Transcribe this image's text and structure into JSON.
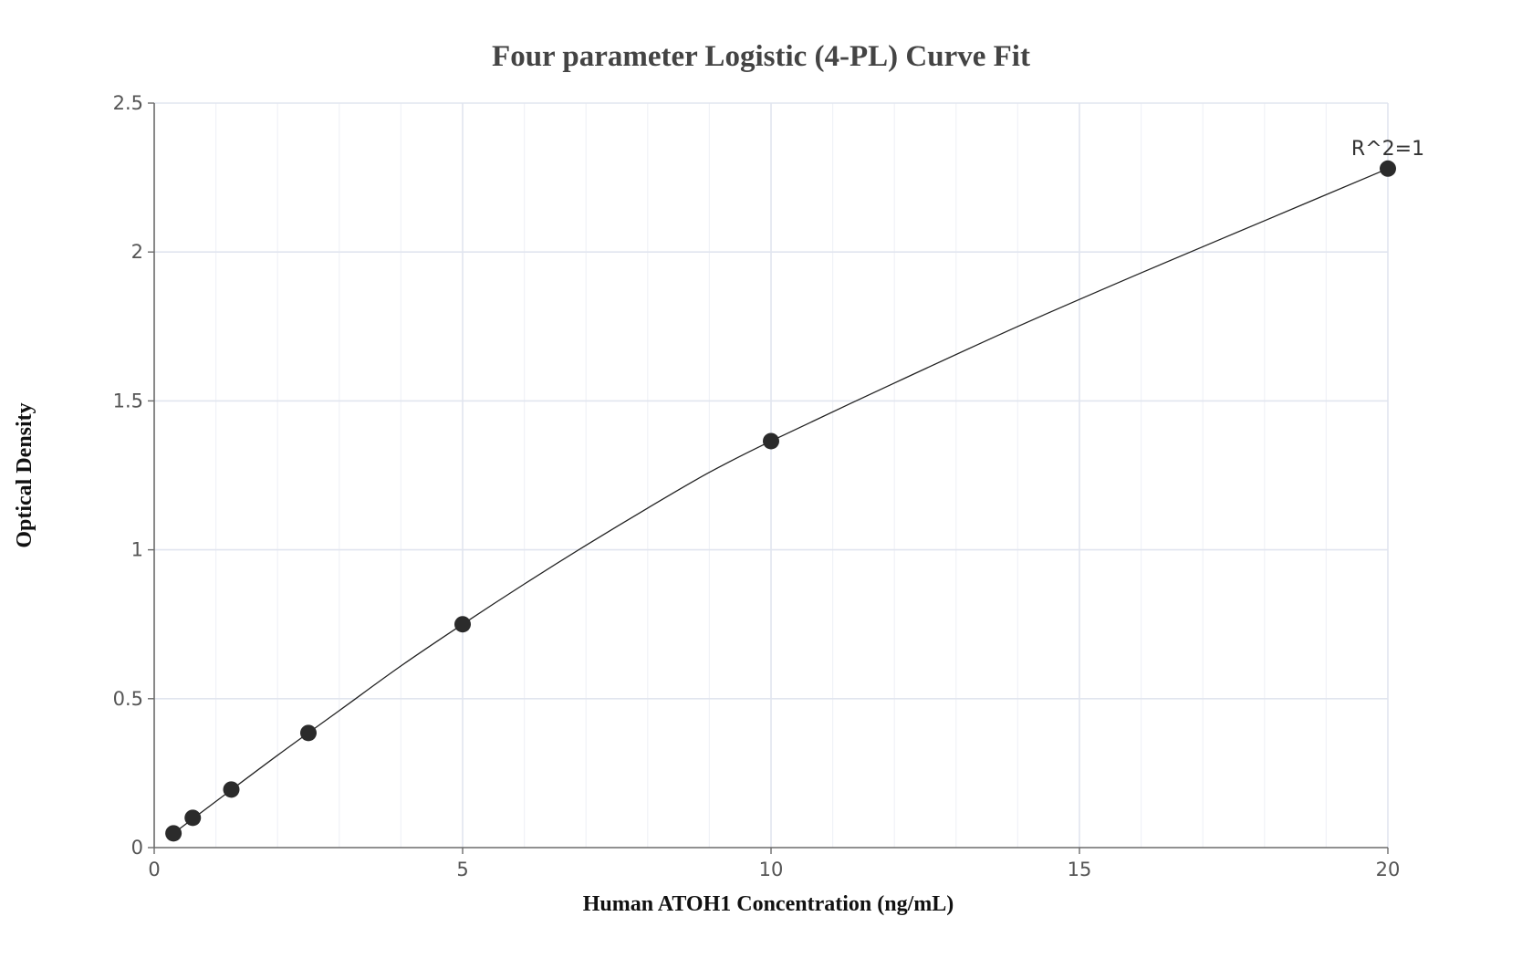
{
  "chart_data": {
    "type": "scatter",
    "title": "Four parameter Logistic (4-PL) Curve Fit",
    "xlabel": "Human ATOH1 Concentration (ng/mL)",
    "ylabel": "Optical Density",
    "xlim": [
      0,
      20
    ],
    "ylim": [
      0,
      2.5
    ],
    "x_ticks": [
      0,
      5,
      10,
      15,
      20
    ],
    "y_ticks": [
      0,
      0.5,
      1,
      1.5,
      2,
      2.5
    ],
    "x_tick_labels": [
      "0",
      "5",
      "10",
      "15",
      "20"
    ],
    "y_tick_labels": [
      "0",
      "0.5",
      "1",
      "1.5",
      "2",
      "2.5"
    ],
    "grid": true,
    "legend": "none",
    "series": [
      {
        "points": [
          {
            "x": 0.3125,
            "y": 0.048
          },
          {
            "x": 0.625,
            "y": 0.1
          },
          {
            "x": 1.25,
            "y": 0.195
          },
          {
            "x": 2.5,
            "y": 0.385
          },
          {
            "x": 5,
            "y": 0.75
          },
          {
            "x": 10,
            "y": 1.365
          },
          {
            "x": 20,
            "y": 2.28
          }
        ]
      }
    ],
    "fit_curve": {
      "model": "4PL",
      "points": [
        {
          "x": 0.3125,
          "y": 0.048
        },
        {
          "x": 1,
          "y": 0.155
        },
        {
          "x": 2,
          "y": 0.31
        },
        {
          "x": 3,
          "y": 0.46
        },
        {
          "x": 4,
          "y": 0.61
        },
        {
          "x": 5,
          "y": 0.75
        },
        {
          "x": 6,
          "y": 0.885
        },
        {
          "x": 7,
          "y": 1.015
        },
        {
          "x": 8,
          "y": 1.14
        },
        {
          "x": 9,
          "y": 1.26
        },
        {
          "x": 10,
          "y": 1.365
        },
        {
          "x": 12,
          "y": 1.56
        },
        {
          "x": 14,
          "y": 1.75
        },
        {
          "x": 16,
          "y": 1.93
        },
        {
          "x": 18,
          "y": 2.105
        },
        {
          "x": 20,
          "y": 2.28
        }
      ]
    },
    "annotations": [
      {
        "text": "R^2=1",
        "x": 20,
        "y": 2.28
      }
    ]
  }
}
